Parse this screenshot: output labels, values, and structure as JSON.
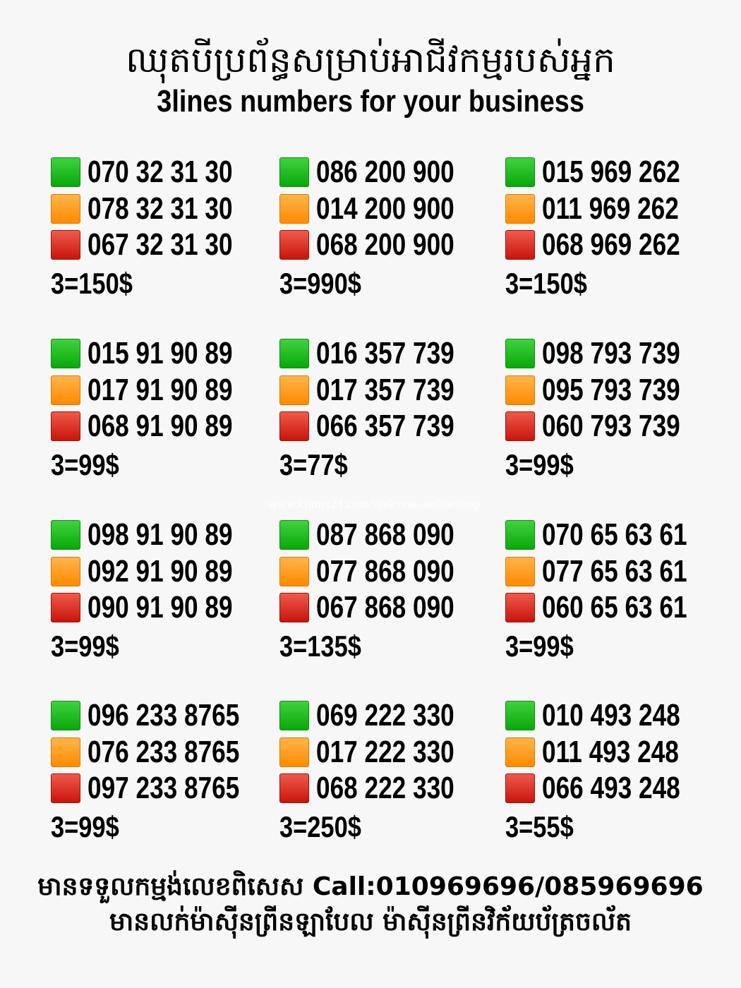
{
  "header": {
    "title_km": "ឈុតបីប្រព័ន្ធសម្រាប់អាជីវកម្មរបស់អ្នក",
    "title_en": "3lines numbers for your business"
  },
  "colors": {
    "green": "#14b814",
    "orange": "#ff9a1a",
    "red": "#d8281c"
  },
  "groups": [
    {
      "numbers": [
        "070 32 31 30",
        "078 32 31 30",
        "067 32 31 30"
      ],
      "price": "3=150$"
    },
    {
      "numbers": [
        "086 200 900",
        "014 200 900",
        "068 200 900"
      ],
      "price": "3=990$"
    },
    {
      "numbers": [
        "015 969 262",
        "011 969 262",
        "068 969 262"
      ],
      "price": "3=150$"
    },
    {
      "numbers": [
        "015 91 90 89",
        "017 91 90 89",
        "068 91 90 89"
      ],
      "price": "3=99$"
    },
    {
      "numbers": [
        "016 357 739",
        "017 357 739",
        "066 357 739"
      ],
      "price": "3=77$"
    },
    {
      "numbers": [
        "098 793 739",
        "095 793 739",
        "060 793 739"
      ],
      "price": "3=99$"
    },
    {
      "numbers": [
        "098 91 90 89",
        "092 91 90 89",
        "090 91 90 89"
      ],
      "price": "3=99$"
    },
    {
      "numbers": [
        "087 868 090",
        "077 868 090",
        "067 868 090"
      ],
      "price": "3=135$"
    },
    {
      "numbers": [
        "070 65 63 61",
        "077 65 63 61",
        "060 65 63 61"
      ],
      "price": "3=99$"
    },
    {
      "numbers": [
        "096 233 8765",
        "076 233 8765",
        "097 233 8765"
      ],
      "price": "3=99$"
    },
    {
      "numbers": [
        "069 222 330",
        "017 222 330",
        "068 222 330"
      ],
      "price": "3=250$"
    },
    {
      "numbers": [
        "010 493 248",
        "011 493 248",
        "066 493 248"
      ],
      "price": "3=55$"
    }
  ],
  "watermark": "www.khmer24.com/Welcome-onlineshop",
  "footer": {
    "line1": "មានទទួលកម្មង់លេខពិសេស Call:010969696/085969696",
    "line2": "មានលក់ម៉ាស៊ីនព្រីនឡាបែល ម៉ាស៊ីនព្រីនវិក័យប័ត្រចល័ត"
  }
}
